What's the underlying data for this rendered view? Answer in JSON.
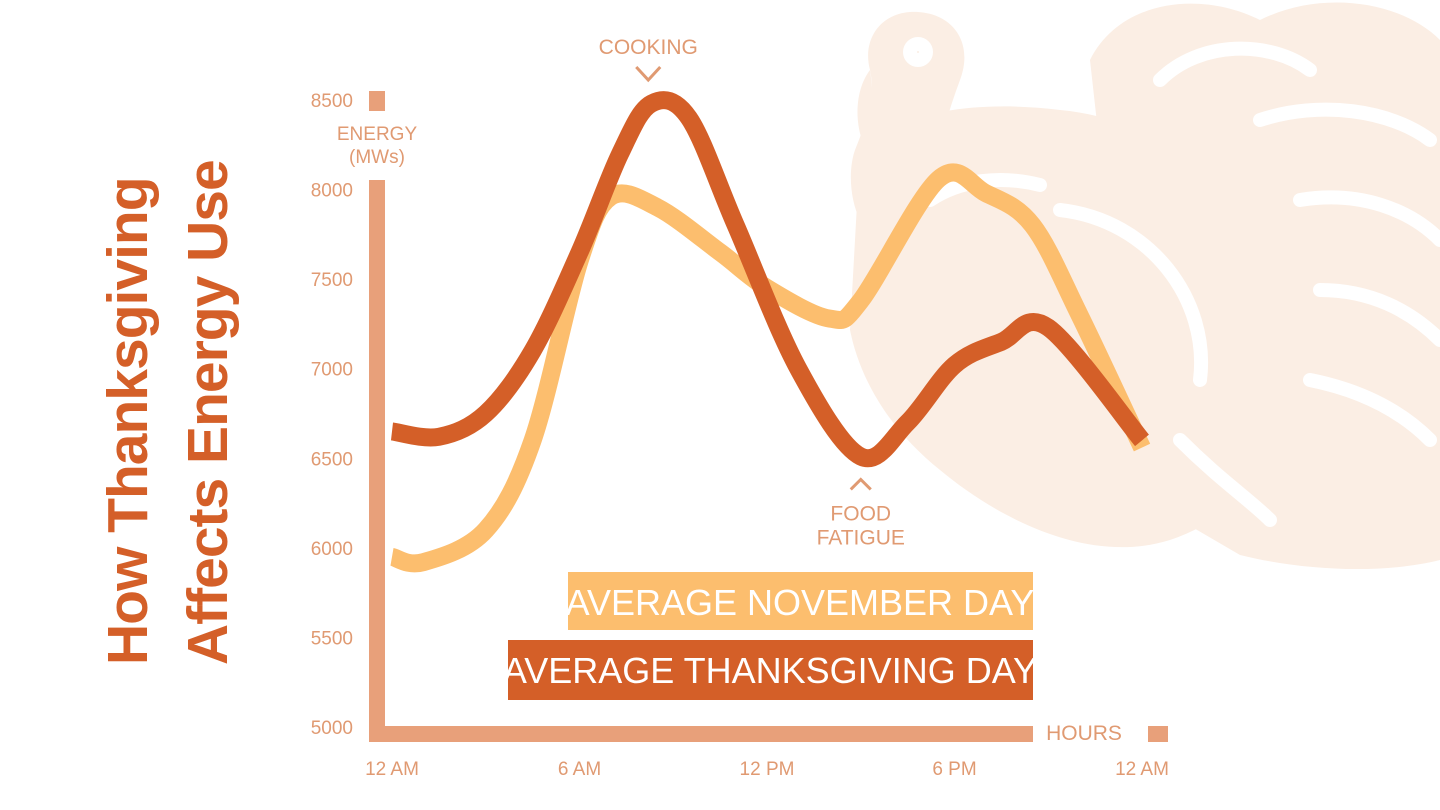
{
  "title_lines": [
    "How Thanksgiving",
    "Affects Energy Use"
  ],
  "colors": {
    "thanksgiving": "#d45f28",
    "november": "#fcbe6e",
    "axis": "#e8a07a",
    "label": "#e09a72",
    "turkey": "#fbeee4"
  },
  "chart_data": {
    "type": "line",
    "title": "How Thanksgiving Affects Energy Use",
    "ylabel": "ENERGY (MWs)",
    "xlabel": "HOURS",
    "ylim": [
      5000,
      8500
    ],
    "yticks": [
      "8500",
      "8000",
      "7500",
      "7000",
      "6500",
      "6000",
      "5500",
      "5000"
    ],
    "xlim": [
      0,
      24
    ],
    "xticks": [
      {
        "value": 0,
        "label": "12 AM"
      },
      {
        "value": 6,
        "label": "6 AM"
      },
      {
        "value": 12,
        "label": "12 PM"
      },
      {
        "value": 18,
        "label": "6 PM"
      },
      {
        "value": 24,
        "label": "12 AM"
      }
    ],
    "series": [
      {
        "name": "AVERAGE NOVEMBER DAY",
        "color": "#fcbe6e",
        "x": [
          0,
          1,
          3,
          4.5,
          6,
          7,
          8.5,
          10.5,
          12,
          14,
          15,
          17.5,
          19,
          20.5,
          22,
          24
        ],
        "y": [
          5950,
          5920,
          6100,
          6600,
          7600,
          7960,
          7900,
          7650,
          7450,
          7280,
          7380,
          8060,
          7980,
          7800,
          7300,
          6560
        ]
      },
      {
        "name": "AVERAGE THANKSGIVING DAY",
        "color": "#d45f28",
        "x": [
          0,
          1.5,
          3,
          4.5,
          6,
          7.3,
          8.3,
          9.5,
          11,
          13,
          15,
          16.5,
          18,
          19.5,
          21,
          24
        ],
        "y": [
          6650,
          6620,
          6750,
          7100,
          7650,
          8200,
          8480,
          8400,
          7800,
          7000,
          6510,
          6700,
          7020,
          7150,
          7230,
          6600
        ]
      }
    ],
    "annotations": [
      {
        "text": "COOKING",
        "x": 8.2,
        "y": 8500,
        "position": "above"
      },
      {
        "text": "FOOD\nFATIGUE",
        "x": 15,
        "y": 6510,
        "position": "below"
      }
    ],
    "legend": {
      "position": "bottom-center"
    }
  }
}
